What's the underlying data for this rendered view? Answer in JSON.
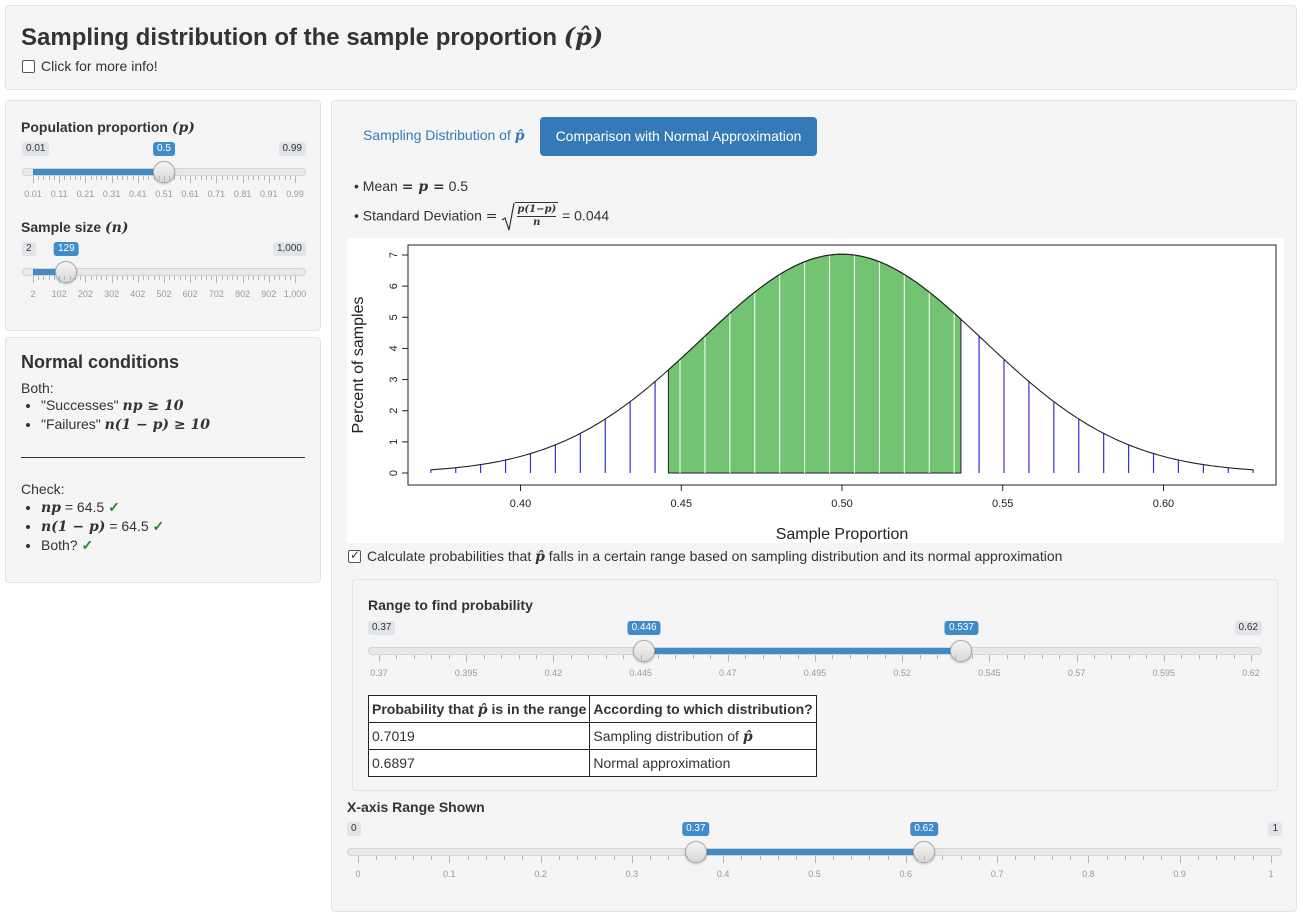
{
  "header": {
    "title": "Sampling distribution of the sample proportion",
    "title_symbol": "(p̂)",
    "info_checkbox_label": "Click for more info!"
  },
  "pop_prop": {
    "label": "Population proportion",
    "symbol": "(p)",
    "min_label": "0.01",
    "max_label": "0.99",
    "value_label": "0.5",
    "min": 0.01,
    "max": 0.99,
    "value": 0.5,
    "tick_labels": [
      "0.01",
      "0.11",
      "0.21",
      "0.31",
      "0.41",
      "0.51",
      "0.61",
      "0.71",
      "0.81",
      "0.91",
      "0.99"
    ]
  },
  "sample_size": {
    "label": "Sample size",
    "symbol": "(n)",
    "min_label": "2",
    "max_label": "1,000",
    "value_label": "129",
    "min": 2,
    "max": 1000,
    "value": 129,
    "tick_labels": [
      "2",
      "102",
      "202",
      "302",
      "402",
      "502",
      "602",
      "702",
      "802",
      "902",
      "1,000"
    ]
  },
  "conditions": {
    "title": "Normal conditions",
    "both_label": "Both:",
    "successes_label": "\"Successes\"",
    "successes_math": "np ≥ 10",
    "failures_label": "\"Failures\"",
    "failures_math": "n(1 − p) ≥ 10",
    "check_label": "Check:",
    "np_math": "np",
    "np_value": "= 64.5",
    "nq_math": "n(1 − p)",
    "nq_value": "= 64.5",
    "both_q": "Both?",
    "checkmark": "✓"
  },
  "tabs": {
    "tab1_label": "Sampling Distribution of",
    "tab1_symbol": "p̂",
    "tab2_label": "Comparison with Normal Approximation"
  },
  "stats": {
    "mean_label": "Mean",
    "mean_math": "= p =",
    "mean_value": "0.5",
    "sd_label": "Standard Deviation",
    "sd_eq": "=",
    "sd_num": "p(1−p)",
    "sd_den": "n",
    "sd_value": "= 0.044"
  },
  "chart_data": {
    "type": "bar",
    "xlabel": "Sample Proportion",
    "ylabel": "Percent of samples",
    "xlim": [
      0.365,
      0.635
    ],
    "ylim": [
      0,
      7.0
    ],
    "x_ticks": [
      0.4,
      0.45,
      0.5,
      0.55,
      0.6
    ],
    "x_tick_labels": [
      "0.40",
      "0.45",
      "0.50",
      "0.55",
      "0.60"
    ],
    "y_ticks": [
      0,
      1,
      2,
      3,
      4,
      5,
      6,
      7
    ],
    "y_tick_labels": [
      "0",
      "1",
      "2",
      "3",
      "4",
      "5",
      "6",
      "7"
    ],
    "n": 129,
    "p": 0.5,
    "highlight_range": [
      0.446,
      0.537
    ],
    "highlight_color": "#72c472",
    "bar_color": "#3030d8"
  },
  "calc": {
    "checkbox_label_pre": "Calculate probabilities that",
    "checkbox_symbol": "p̂",
    "checkbox_label_post": "falls in a certain range based on sampling distribution and its normal approximation"
  },
  "range_prob": {
    "label": "Range to find probability",
    "min_label": "0.37",
    "max_label": "0.62",
    "low_label": "0.446",
    "high_label": "0.537",
    "min": 0.37,
    "max": 0.62,
    "low": 0.446,
    "high": 0.537,
    "tick_labels": [
      "0.37",
      "0.395",
      "0.42",
      "0.445",
      "0.47",
      "0.495",
      "0.52",
      "0.545",
      "0.57",
      "0.595",
      "0.62"
    ]
  },
  "table": {
    "header_prob_pre": "Probability that",
    "header_prob_sym": "p̂",
    "header_prob_post": "is in the range",
    "header_dist": "According to which distribution?",
    "rows": [
      {
        "prob": "0.7019",
        "dist": "Sampling distribution of",
        "dist_sym": "p̂"
      },
      {
        "prob": "0.6897",
        "dist": "Normal approximation",
        "dist_sym": ""
      }
    ]
  },
  "xaxis_range": {
    "label": "X-axis Range Shown",
    "min_label": "0",
    "max_label": "1",
    "low_label": "0.37",
    "high_label": "0.62",
    "min": 0,
    "max": 1,
    "low": 0.37,
    "high": 0.62,
    "tick_labels": [
      "0",
      "0.1",
      "0.2",
      "0.3",
      "0.4",
      "0.5",
      "0.6",
      "0.7",
      "0.8",
      "0.9",
      "1"
    ]
  }
}
